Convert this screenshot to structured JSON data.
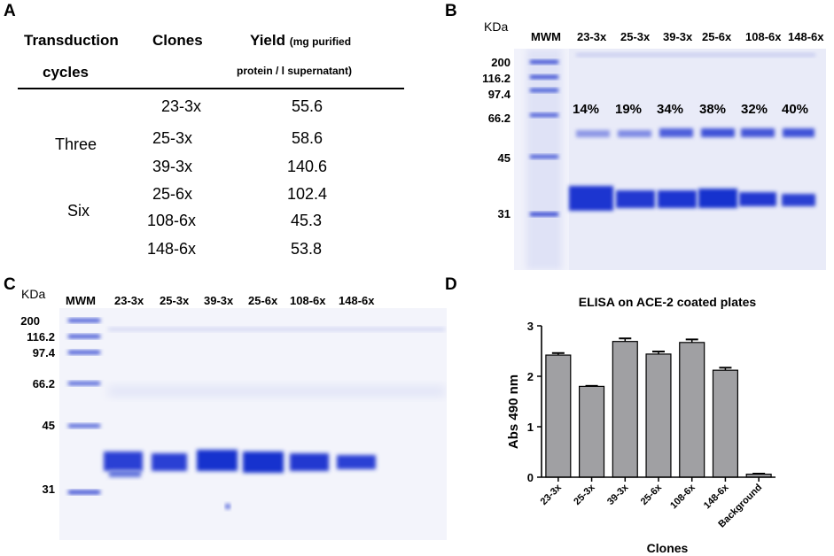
{
  "panels": {
    "a": {
      "letter": "A",
      "headers": {
        "col1_line1": "Transduction",
        "col1_line2": "cycles",
        "col2": "Clones",
        "col3_main": "Yield",
        "col3_sub1": "(mg purified",
        "col3_sub2": "protein / l supernatant)"
      },
      "groups": [
        "Three",
        "Six"
      ],
      "rows": [
        {
          "clone": "23-3x",
          "yield": "55.6"
        },
        {
          "clone": "25-3x",
          "yield": "58.6"
        },
        {
          "clone": "39-3x",
          "yield": "140.6"
        },
        {
          "clone": "25-6x",
          "yield": "102.4"
        },
        {
          "clone": "108-6x",
          "yield": "45.3"
        },
        {
          "clone": "148-6x",
          "yield": "53.8"
        }
      ]
    },
    "b": {
      "letter": "B",
      "kda": "KDa",
      "mwm": "MWM",
      "markers": [
        "200",
        "116.2",
        "97.4",
        "66.2",
        "45",
        "31"
      ],
      "lanes": [
        "23-3x",
        "25-3x",
        "39-3x",
        "25-6x",
        "108-6x",
        "148-6x"
      ],
      "percents": [
        "14%",
        "19%",
        "34%",
        "38%",
        "32%",
        "40%"
      ]
    },
    "c": {
      "letter": "C",
      "kda": "KDa",
      "mwm": "MWM",
      "markers": [
        "200",
        "116.2",
        "97.4",
        "66.2",
        "45",
        "31"
      ],
      "lanes": [
        "23-3x",
        "25-3x",
        "39-3x",
        "25-6x",
        "108-6x",
        "148-6x"
      ]
    },
    "d": {
      "letter": "D"
    }
  },
  "chart_data": {
    "type": "bar",
    "title": "ELISA on ACE-2 coated plates",
    "xlabel": "Clones",
    "ylabel": "Abs 490 nm",
    "ylim": [
      0,
      3
    ],
    "yticks": [
      "0",
      "1",
      "2",
      "3"
    ],
    "categories": [
      "23-3x",
      "25-3x",
      "39-3x",
      "25-6x",
      "108-6x",
      "148-6x",
      "Background"
    ],
    "values": [
      2.42,
      1.8,
      2.69,
      2.44,
      2.67,
      2.12,
      0.06
    ],
    "errors": [
      0.04,
      0.01,
      0.06,
      0.05,
      0.06,
      0.05,
      0.01
    ],
    "bar_color": "#a0a0a3"
  }
}
